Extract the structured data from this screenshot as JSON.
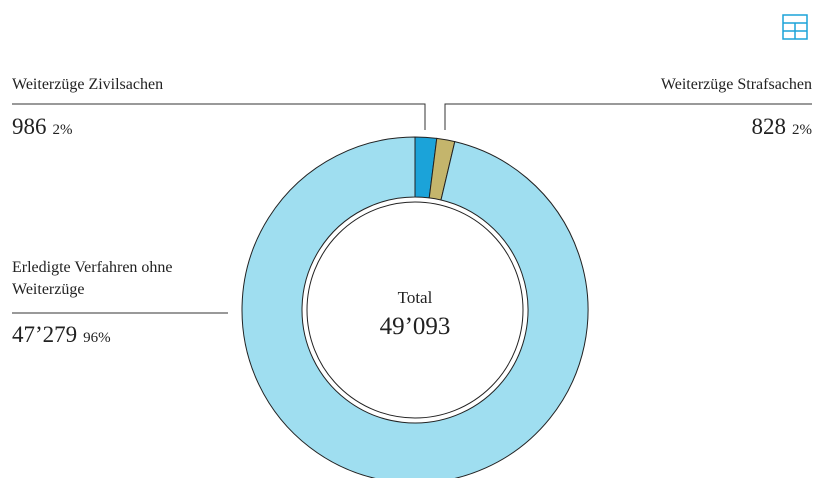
{
  "chart_data": {
    "type": "donut",
    "categories": [
      "Weiterzüge Zivilsachen",
      "Weiterzüge Strafsachen",
      "Erledigte Verfahren ohne Weiterzüge"
    ],
    "values": [
      986,
      828,
      47279
    ],
    "value_labels": [
      "986",
      "828",
      "47’279"
    ],
    "percent_labels": [
      "2%",
      "2%",
      "96%"
    ],
    "colors": [
      "#1ba3d9",
      "#c4b56c",
      "#9fdef0"
    ],
    "center_label": "Total",
    "total": {
      "value": 49093,
      "label": "49’093"
    }
  }
}
